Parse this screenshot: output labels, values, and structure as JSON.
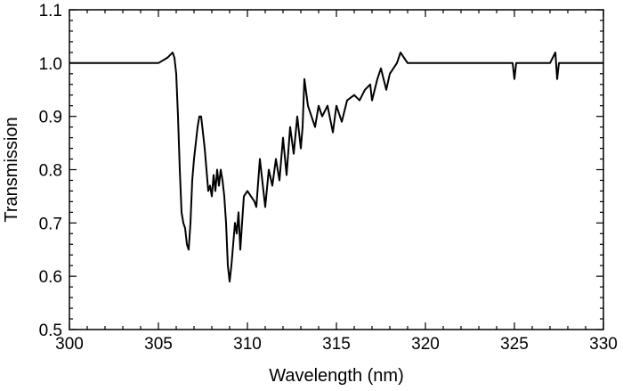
{
  "chart_data": {
    "type": "line",
    "title": "",
    "xlabel": "Wavelength (nm)",
    "ylabel": "Transmission",
    "xlim": [
      300,
      330
    ],
    "ylim": [
      0.5,
      1.1
    ],
    "x_ticks": [
      300,
      305,
      310,
      315,
      320,
      325,
      330
    ],
    "x_tick_labels": [
      "300",
      "305",
      "310",
      "315",
      "320",
      "325",
      "330"
    ],
    "y_ticks": [
      0.5,
      0.6,
      0.7,
      0.8,
      0.9,
      1.0,
      1.1
    ],
    "y_tick_labels": [
      "0.5",
      "0.6",
      "0.7",
      "0.8",
      "0.9",
      "1.0",
      "1.1"
    ],
    "grid": false,
    "legend": "none",
    "series": [
      {
        "color": "#000000",
        "x": [
          300.0,
          301.0,
          302.0,
          303.0,
          304.0,
          305.0,
          305.5,
          305.8,
          305.9,
          306.0,
          306.1,
          306.2,
          306.3,
          306.4,
          306.5,
          306.6,
          306.7,
          306.8,
          306.9,
          307.0,
          307.1,
          307.2,
          307.3,
          307.4,
          307.5,
          307.6,
          307.7,
          307.8,
          307.9,
          308.0,
          308.1,
          308.2,
          308.3,
          308.4,
          308.5,
          308.6,
          308.7,
          308.8,
          308.9,
          309.0,
          309.1,
          309.2,
          309.3,
          309.4,
          309.5,
          309.6,
          309.8,
          310.0,
          310.2,
          310.4,
          310.5,
          310.7,
          310.9,
          311.0,
          311.2,
          311.4,
          311.6,
          311.8,
          312.0,
          312.2,
          312.4,
          312.6,
          312.8,
          313.0,
          313.1,
          313.2,
          313.4,
          313.6,
          313.8,
          314.0,
          314.2,
          314.5,
          314.8,
          315.0,
          315.3,
          315.6,
          316.0,
          316.3,
          316.6,
          316.9,
          317.0,
          317.3,
          317.5,
          317.8,
          318.0,
          318.2,
          318.4,
          318.6,
          319.0,
          320.0,
          321.0,
          322.0,
          323.0,
          324.0,
          324.9,
          325.0,
          325.1,
          326.0,
          327.0,
          327.3,
          327.4,
          327.5,
          328.0,
          329.0,
          330.0
        ],
        "y": [
          1.0,
          1.0,
          1.0,
          1.0,
          1.0,
          1.0,
          1.01,
          1.02,
          1.01,
          0.98,
          0.9,
          0.8,
          0.72,
          0.7,
          0.69,
          0.66,
          0.65,
          0.7,
          0.78,
          0.82,
          0.85,
          0.88,
          0.9,
          0.9,
          0.87,
          0.84,
          0.8,
          0.76,
          0.77,
          0.75,
          0.79,
          0.76,
          0.8,
          0.77,
          0.8,
          0.78,
          0.75,
          0.7,
          0.62,
          0.59,
          0.62,
          0.66,
          0.7,
          0.68,
          0.72,
          0.65,
          0.75,
          0.76,
          0.75,
          0.74,
          0.73,
          0.82,
          0.76,
          0.73,
          0.8,
          0.77,
          0.82,
          0.78,
          0.86,
          0.79,
          0.88,
          0.83,
          0.9,
          0.84,
          0.88,
          0.97,
          0.92,
          0.9,
          0.88,
          0.92,
          0.9,
          0.92,
          0.87,
          0.92,
          0.89,
          0.93,
          0.94,
          0.93,
          0.95,
          0.96,
          0.93,
          0.97,
          0.99,
          0.95,
          0.98,
          0.99,
          1.0,
          1.02,
          1.0,
          1.0,
          1.0,
          1.0,
          1.0,
          1.0,
          1.0,
          0.97,
          1.0,
          1.0,
          1.0,
          1.02,
          0.97,
          1.0,
          1.0,
          1.0,
          1.0
        ]
      }
    ]
  }
}
